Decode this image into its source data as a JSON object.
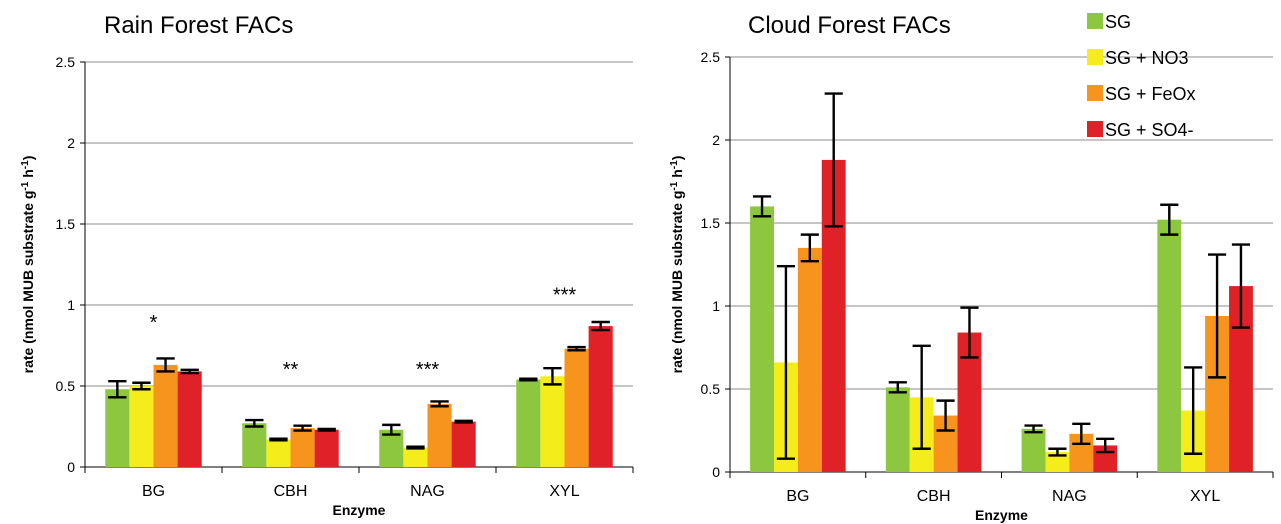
{
  "legend": {
    "placement": "top-right",
    "items": [
      {
        "label": "SG",
        "color": "#8dc63f"
      },
      {
        "label": "SG + NO3",
        "color": "#f5ec1c"
      },
      {
        "label": "SG + FeOx",
        "color": "#f7941d"
      },
      {
        "label": "SG + SO4-",
        "color": "#e02127"
      }
    ]
  },
  "chart_data": [
    {
      "type": "bar",
      "title": "Rain Forest FACs",
      "xlabel": "Enzyme",
      "ylabel": "rate (nmol MUB substrate g-1 h-1)",
      "ylim": [
        0,
        2.5
      ],
      "yticks": [
        0,
        0.5,
        1,
        1.5,
        2,
        2.5
      ],
      "ytick_labels": [
        "0",
        "0.5",
        "1",
        "1.5",
        "2",
        "2.5"
      ],
      "grid": true,
      "categories": [
        "BG",
        "CBH",
        "NAG",
        "XYL"
      ],
      "annotations": [
        "*",
        "**",
        "***",
        "***"
      ],
      "annotation_y": [
        0.9,
        0.61,
        0.61,
        1.07
      ],
      "series": [
        {
          "name": "SG",
          "color": "#8dc63f",
          "values": [
            0.48,
            0.27,
            0.23,
            0.54
          ],
          "errors": [
            0.05,
            0.02,
            0.03,
            0.005
          ]
        },
        {
          "name": "SG + NO3",
          "color": "#f5ec1c",
          "values": [
            0.5,
            0.17,
            0.12,
            0.56
          ],
          "errors": [
            0.02,
            0.005,
            0.005,
            0.05
          ]
        },
        {
          "name": "SG + FeOx",
          "color": "#f7941d",
          "values": [
            0.63,
            0.24,
            0.39,
            0.73
          ],
          "errors": [
            0.04,
            0.015,
            0.015,
            0.01
          ]
        },
        {
          "name": "SG + SO4-",
          "color": "#e02127",
          "values": [
            0.59,
            0.23,
            0.28,
            0.87
          ],
          "errors": [
            0.01,
            0.005,
            0.005,
            0.025
          ]
        }
      ]
    },
    {
      "type": "bar",
      "title": "Cloud Forest FACs",
      "xlabel": "Enzyme",
      "ylabel": "rate (nmol MUB substrate g-1 h-1)",
      "ylim": [
        0,
        2.5
      ],
      "yticks": [
        0,
        0.5,
        1,
        1.5,
        2,
        2.5
      ],
      "ytick_labels": [
        "0",
        "0.5",
        "1",
        "1.5",
        "2",
        "2.5"
      ],
      "grid": true,
      "categories": [
        "BG",
        "CBH",
        "NAG",
        "XYL"
      ],
      "series": [
        {
          "name": "SG",
          "color": "#8dc63f",
          "values": [
            1.6,
            0.51,
            0.26,
            1.52
          ],
          "errors": [
            0.06,
            0.03,
            0.02,
            0.09
          ]
        },
        {
          "name": "SG + NO3",
          "color": "#f5ec1c",
          "values": [
            0.66,
            0.45,
            0.12,
            0.37
          ],
          "errors": [
            0.58,
            0.31,
            0.02,
            0.26
          ]
        },
        {
          "name": "SG + FeOx",
          "color": "#f7941d",
          "values": [
            1.35,
            0.34,
            0.23,
            0.94
          ],
          "errors": [
            0.08,
            0.09,
            0.06,
            0.37
          ]
        },
        {
          "name": "SG + SO4-",
          "color": "#e02127",
          "values": [
            1.88,
            0.84,
            0.16,
            1.12
          ],
          "errors": [
            0.4,
            0.15,
            0.04,
            0.25
          ]
        }
      ]
    }
  ]
}
